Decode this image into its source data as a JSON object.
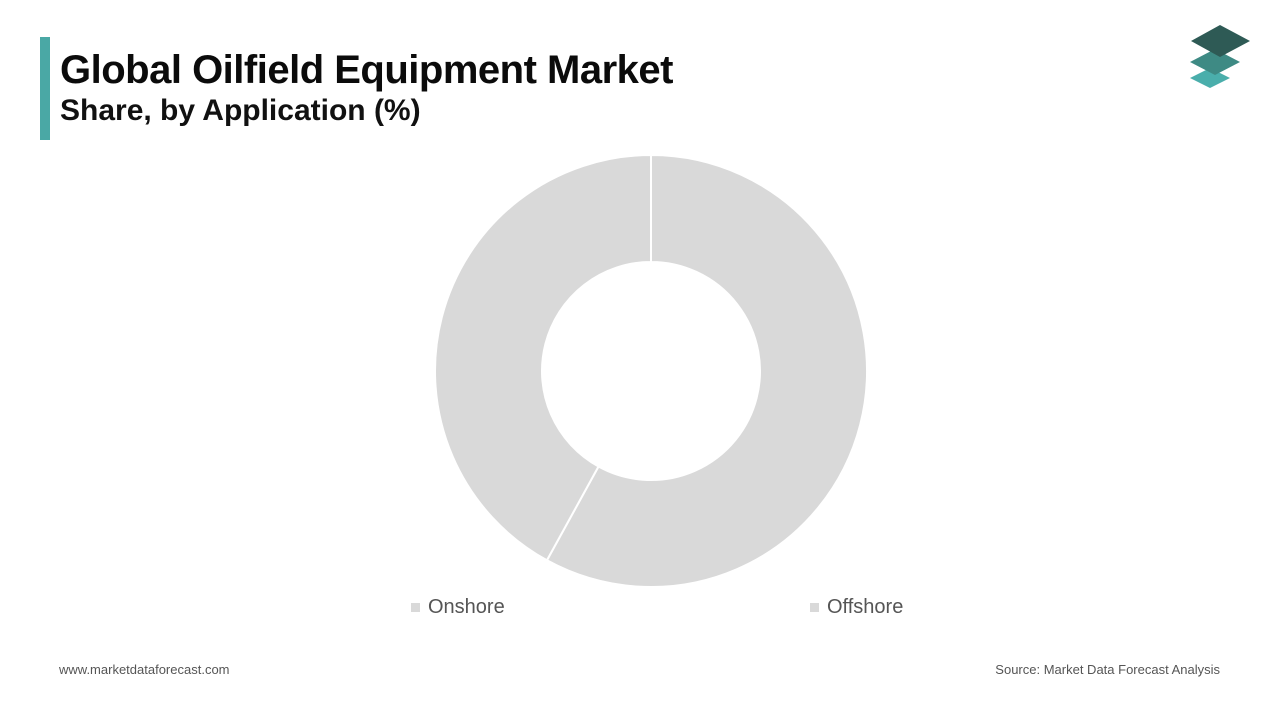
{
  "header": {
    "title": "Global Oilfield Equipment Market",
    "subtitle": "Share, by Application (%)",
    "accent_color": "#4aa8a5"
  },
  "logo": {
    "icon": "stacked-layers-icon",
    "colors": [
      "#2e5a55",
      "#3e8a84",
      "#4aaeab"
    ]
  },
  "chart_data": {
    "type": "pie",
    "donut": true,
    "title": "",
    "categories": [
      "Onshore",
      "Offshore"
    ],
    "values": [
      42,
      58
    ],
    "colors": [
      "#d9d9d9",
      "#d9d9d9"
    ],
    "legend_position": "bottom"
  },
  "footer": {
    "website": "www.marketdataforecast.com",
    "source": "Source: Market Data Forecast Analysis"
  }
}
